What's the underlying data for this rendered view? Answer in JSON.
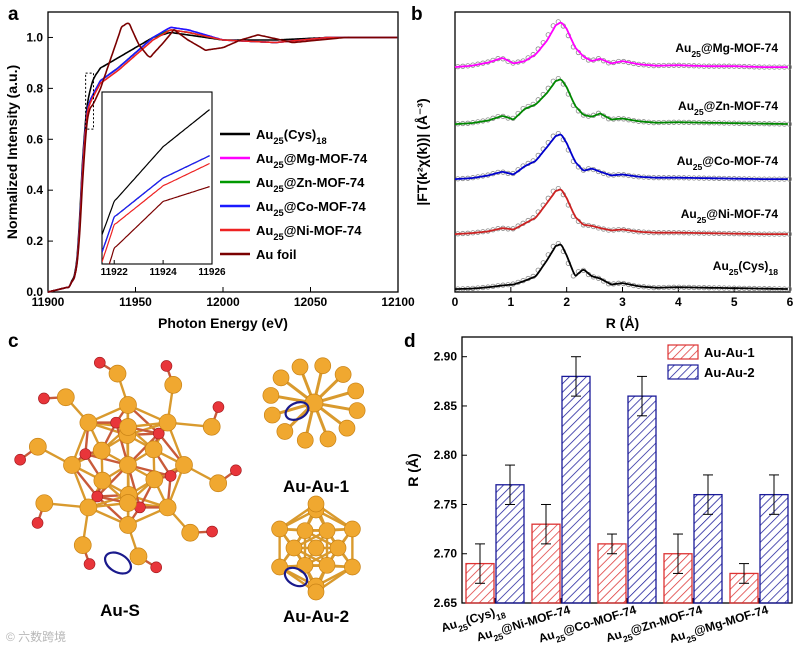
{
  "panels": {
    "a": "a",
    "b": "b",
    "c": "c",
    "d": "d"
  },
  "chart_data": [
    {
      "id": "a",
      "type": "line",
      "xlabel": "Photon Energy (eV)",
      "ylabel": "Normalized Intensity (a.u.)",
      "xlim": [
        11900,
        12100
      ],
      "ylim": [
        0.0,
        1.1
      ],
      "xticks": [
        "11900",
        "11950",
        "12000",
        "12050",
        "12100"
      ],
      "yticks": [
        "0.0",
        "0.2",
        "0.4",
        "0.6",
        "0.8",
        "1.0"
      ],
      "legend": [
        "Au25(Cys)18",
        "Au25@Mg-MOF-74",
        "Au25@Zn-MOF-74",
        "Au25@Co-MOF-74",
        "Au25@Ni-MOF-74",
        "Au foil"
      ],
      "series": [
        {
          "name": "Au25(Cys)18",
          "color": "#000000",
          "x": [
            11900,
            11912,
            11916,
            11918,
            11920,
            11922,
            11924,
            11926,
            11930,
            11940,
            11950,
            11960,
            11970,
            11980,
            12000,
            12030,
            12060,
            12100
          ],
          "y": [
            0.0,
            0.02,
            0.08,
            0.28,
            0.55,
            0.72,
            0.79,
            0.84,
            0.88,
            0.92,
            0.96,
            1.0,
            1.02,
            1.01,
            0.99,
            0.99,
            1.0,
            1.0
          ]
        },
        {
          "name": "Au25@Mg-MOF-74",
          "color": "#ff00ff",
          "x": [
            11900,
            11912,
            11916,
            11918,
            11920,
            11922,
            11924,
            11926,
            11930,
            11940,
            11950,
            11960,
            11970,
            11980,
            12000,
            12030,
            12060,
            12100
          ],
          "y": [
            0.0,
            0.02,
            0.07,
            0.25,
            0.52,
            0.7,
            0.75,
            0.78,
            0.83,
            0.88,
            0.94,
            1.0,
            1.04,
            1.03,
            0.99,
            0.98,
            1.0,
            1.0
          ]
        },
        {
          "name": "Au25@Zn-MOF-74",
          "color": "#009900",
          "x": [
            11900,
            11912,
            11916,
            11918,
            11920,
            11922,
            11924,
            11926,
            11930,
            11940,
            11950,
            11960,
            11970,
            11980,
            12000,
            12030,
            12060,
            12100
          ],
          "y": [
            0.0,
            0.02,
            0.07,
            0.25,
            0.52,
            0.7,
            0.75,
            0.78,
            0.83,
            0.88,
            0.94,
            1.0,
            1.03,
            1.02,
            0.99,
            0.98,
            1.0,
            1.0
          ]
        },
        {
          "name": "Au25@Co-MOF-74",
          "color": "#1a1aff",
          "x": [
            11900,
            11912,
            11916,
            11918,
            11920,
            11922,
            11924,
            11926,
            11930,
            11940,
            11950,
            11960,
            11970,
            11980,
            12000,
            12030,
            12060,
            12100
          ],
          "y": [
            0.0,
            0.02,
            0.07,
            0.25,
            0.52,
            0.7,
            0.75,
            0.78,
            0.83,
            0.88,
            0.94,
            1.0,
            1.04,
            1.03,
            0.99,
            0.98,
            1.0,
            1.0
          ]
        },
        {
          "name": "Au25@Ni-MOF-74",
          "color": "#ee2222",
          "x": [
            11900,
            11912,
            11916,
            11918,
            11920,
            11922,
            11924,
            11926,
            11930,
            11940,
            11950,
            11960,
            11970,
            11980,
            12000,
            12030,
            12060,
            12100
          ],
          "y": [
            0.0,
            0.02,
            0.07,
            0.24,
            0.5,
            0.69,
            0.74,
            0.77,
            0.82,
            0.87,
            0.93,
            0.99,
            1.03,
            1.02,
            0.99,
            0.98,
            1.0,
            1.0
          ]
        },
        {
          "name": "Au foil",
          "color": "#7a0000",
          "x": [
            11900,
            11912,
            11916,
            11918,
            11920,
            11922,
            11924,
            11926,
            11930,
            11936,
            11942,
            11946,
            11952,
            11958,
            11966,
            11972,
            11980,
            11990,
            12000,
            12010,
            12020,
            12040,
            12070,
            12100
          ],
          "y": [
            0.0,
            0.02,
            0.07,
            0.22,
            0.46,
            0.66,
            0.72,
            0.74,
            0.8,
            0.92,
            1.04,
            1.06,
            0.97,
            0.92,
            0.98,
            1.03,
            0.99,
            0.95,
            0.96,
            0.99,
            1.01,
            0.98,
            1.0,
            1.0
          ]
        }
      ],
      "inset": {
        "xlim": [
          11921.5,
          11926
        ],
        "ylim": [
          0.64,
          0.86
        ],
        "xticks": [
          "11922",
          "11924",
          "11926"
        ]
      }
    },
    {
      "id": "b",
      "type": "line",
      "xlabel": "R (Å)",
      "ylabel": "|FT(k²χ(k))| (Å⁻³)",
      "xlim": [
        0,
        6
      ],
      "xticks": [
        "0",
        "1",
        "2",
        "3",
        "4",
        "5",
        "6"
      ],
      "curve_r": [
        0,
        0.3,
        0.6,
        0.85,
        1.05,
        1.25,
        1.45,
        1.65,
        1.8,
        1.9,
        2.0,
        2.15,
        2.3,
        2.45,
        2.6,
        2.8,
        3.0,
        3.3,
        3.6,
        4.0,
        4.5,
        5.0,
        5.5,
        6.0
      ],
      "series": [
        {
          "name": "Au25@Mg-MOF-74",
          "color": "#ff00ff",
          "amp": [
            0.02,
            0.05,
            0.12,
            0.22,
            0.1,
            0.15,
            0.3,
            0.6,
            0.92,
            1.0,
            0.85,
            0.45,
            0.25,
            0.15,
            0.2,
            0.1,
            0.15,
            0.08,
            0.05,
            0.06,
            0.04,
            0.04,
            0.02,
            0.02
          ]
        },
        {
          "name": "Au25@Zn-MOF-74",
          "color": "#008800",
          "amp": [
            0.02,
            0.04,
            0.1,
            0.2,
            0.12,
            0.35,
            0.45,
            0.7,
            0.95,
            1.0,
            0.82,
            0.42,
            0.22,
            0.18,
            0.25,
            0.12,
            0.14,
            0.08,
            0.05,
            0.06,
            0.05,
            0.04,
            0.03,
            0.02
          ]
        },
        {
          "name": "Au25@Co-MOF-74",
          "color": "#0000cc",
          "amp": [
            0.02,
            0.04,
            0.1,
            0.18,
            0.12,
            0.3,
            0.42,
            0.72,
            0.95,
            1.0,
            0.8,
            0.4,
            0.2,
            0.25,
            0.18,
            0.1,
            0.12,
            0.07,
            0.05,
            0.05,
            0.04,
            0.03,
            0.02,
            0.02
          ]
        },
        {
          "name": "Au25@Ni-MOF-74",
          "color": "#cc2222",
          "amp": [
            0.02,
            0.04,
            0.08,
            0.15,
            0.12,
            0.25,
            0.38,
            0.7,
            0.95,
            1.0,
            0.8,
            0.4,
            0.22,
            0.2,
            0.15,
            0.1,
            0.12,
            0.07,
            0.05,
            0.05,
            0.04,
            0.03,
            0.02,
            0.02
          ]
        },
        {
          "name": "Au25(Cys)18",
          "color": "#000000",
          "amp": [
            0.02,
            0.03,
            0.06,
            0.1,
            0.12,
            0.2,
            0.3,
            0.65,
            0.95,
            1.0,
            0.75,
            0.3,
            0.45,
            0.3,
            0.25,
            0.12,
            0.15,
            0.08,
            0.05,
            0.06,
            0.05,
            0.04,
            0.03,
            0.02
          ]
        }
      ]
    },
    {
      "id": "d",
      "type": "bar",
      "ylabel": "R (Å)",
      "ylim": [
        2.65,
        2.92
      ],
      "yticks": [
        "2.65",
        "2.70",
        "2.75",
        "2.80",
        "2.85",
        "2.90"
      ],
      "categories": [
        "Au25(Cys)18",
        "Au25@Ni-MOF-74",
        "Au25@Co-MOF-74",
        "Au25@Zn-MOF-74",
        "Au25@Mg-MOF-74"
      ],
      "series": [
        {
          "name": "Au-Au-1",
          "color": "#dd3333",
          "values": [
            2.69,
            2.73,
            2.71,
            2.7,
            2.68
          ],
          "errors": [
            0.02,
            0.02,
            0.01,
            0.02,
            0.01
          ]
        },
        {
          "name": "Au-Au-2",
          "color": "#1a1a99",
          "values": [
            2.77,
            2.88,
            2.86,
            2.76,
            2.76
          ],
          "errors": [
            0.02,
            0.02,
            0.02,
            0.02,
            0.02
          ]
        }
      ]
    }
  ],
  "structures": {
    "main_label": "Au-S",
    "sub1_label": "Au-Au-1",
    "sub2_label": "Au-Au-2",
    "gold_color": "#f0a830",
    "sulfur_color": "#e8353a",
    "highlight_color": "#1a1a8c"
  },
  "watermark": "© 六数跨境"
}
